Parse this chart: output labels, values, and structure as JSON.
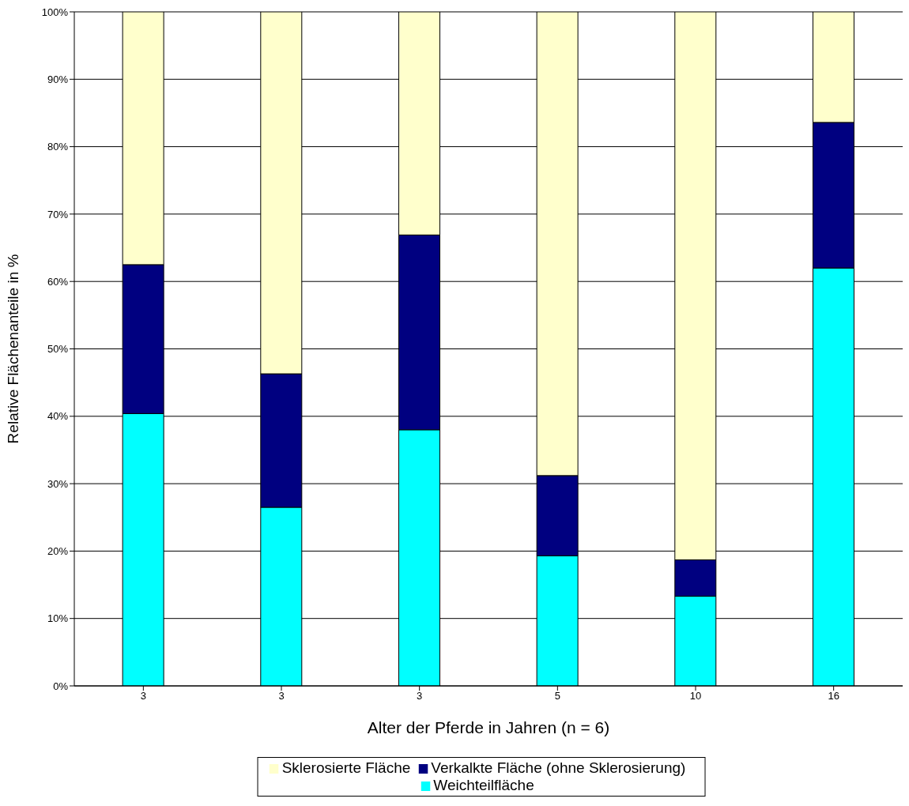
{
  "chart_data": {
    "type": "bar",
    "stacked": true,
    "xlabel": "Alter der Pferde in Jahren (n = 6)",
    "ylabel": "Relative Flächenanteile in %",
    "categories": [
      "3",
      "3",
      "3",
      "5",
      "10",
      "16"
    ],
    "series": [
      {
        "name": "Weichteilfläche",
        "color": "#00ffff",
        "values": [
          40.4,
          26.5,
          38.0,
          19.3,
          13.3,
          62.0
        ]
      },
      {
        "name": "Verkalkte Fläche (ohne Sklerosierung)",
        "color": "#000080",
        "values": [
          22.1,
          19.8,
          28.9,
          11.9,
          5.4,
          21.6
        ]
      },
      {
        "name": "Sklerosierte Fläche",
        "color": "#ffffcc",
        "values": [
          37.5,
          53.7,
          33.1,
          68.8,
          81.3,
          16.4
        ]
      }
    ],
    "ylim": [
      0,
      100
    ],
    "yticks": [
      {
        "value": 0,
        "label": "0%"
      },
      {
        "value": 10,
        "label": "10%"
      },
      {
        "value": 20,
        "label": "20%"
      },
      {
        "value": 30,
        "label": "30%"
      },
      {
        "value": 40,
        "label": "40%"
      },
      {
        "value": 50,
        "label": "50%"
      },
      {
        "value": 60,
        "label": "60%"
      },
      {
        "value": 70,
        "label": "70%"
      },
      {
        "value": 80,
        "label": "80%"
      },
      {
        "value": 90,
        "label": "90%"
      },
      {
        "value": 100,
        "label": "100%"
      }
    ],
    "grid": "y",
    "legend": "bottom"
  }
}
